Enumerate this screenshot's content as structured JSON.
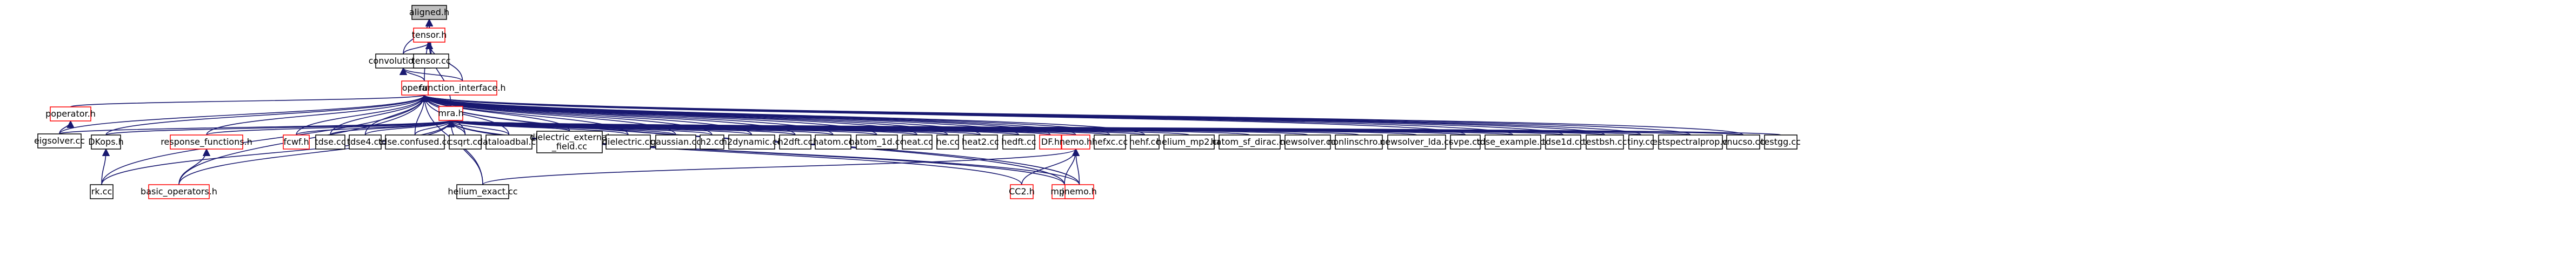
{
  "colors": {
    "edge": "#191970",
    "root_fill": "#bfbfbf",
    "root_stroke": "#000000",
    "normal_stroke": "#000000",
    "link_stroke": "#ff0000",
    "node_fill": "#ffffff"
  },
  "nodes": [
    {
      "id": "aligned_h",
      "label": "aligned.h",
      "kind": "root"
    },
    {
      "id": "tensor_h",
      "label": "tensor.h",
      "kind": "red"
    },
    {
      "id": "convolution1d_h",
      "label": "convolution1d.h",
      "kind": "black"
    },
    {
      "id": "tensor_cc",
      "label": "tensor.cc",
      "kind": "black"
    },
    {
      "id": "operator_h",
      "label": "operator.h",
      "kind": "red"
    },
    {
      "id": "function_interface_h",
      "label": "function_interface.h",
      "kind": "red"
    },
    {
      "id": "poperator_h",
      "label": "poperator.h",
      "kind": "red"
    },
    {
      "id": "mra_h",
      "label": "mra.h",
      "kind": "red"
    },
    {
      "id": "eigsolver_cc",
      "label": "eigsolver.cc",
      "kind": "black"
    },
    {
      "id": "dkops_h",
      "label": "DKops.h",
      "kind": "black"
    },
    {
      "id": "response_functions_h",
      "label": "response_functions.h",
      "kind": "red"
    },
    {
      "id": "fcwf_h",
      "label": "fcwf.h",
      "kind": "red"
    },
    {
      "id": "tdse_cc",
      "label": "tdse.cc",
      "kind": "black"
    },
    {
      "id": "tdse4_cc",
      "label": "tdse4.cc",
      "kind": "black"
    },
    {
      "id": "tdse_confused_cc",
      "label": "tdse.confused.cc",
      "kind": "black"
    },
    {
      "id": "csqrt_cc",
      "label": "csqrt.cc",
      "kind": "black"
    },
    {
      "id": "dataloadbal_cc",
      "label": "dataloadbal.cc",
      "kind": "black"
    },
    {
      "id": "dielectric_external_field_cc",
      "label": "dielectric_external\n_field.cc",
      "kind": "black"
    },
    {
      "id": "dielectric_cc",
      "label": "dielectric.cc",
      "kind": "black"
    },
    {
      "id": "gaussian_cc",
      "label": "gaussian.cc",
      "kind": "black"
    },
    {
      "id": "h2_cc",
      "label": "h2.cc",
      "kind": "black"
    },
    {
      "id": "h2dynamic_cc",
      "label": "h2dynamic.cc",
      "kind": "black"
    },
    {
      "id": "h2dft_cc",
      "label": "h2dft.cc",
      "kind": "black"
    },
    {
      "id": "hatom_cc",
      "label": "hatom.cc",
      "kind": "black"
    },
    {
      "id": "hatom_1d_cc",
      "label": "hatom_1d.cc",
      "kind": "black"
    },
    {
      "id": "heat_cc",
      "label": "heat.cc",
      "kind": "black"
    },
    {
      "id": "he_cc",
      "label": "he.cc",
      "kind": "black"
    },
    {
      "id": "heat2_cc",
      "label": "heat2.cc",
      "kind": "black"
    },
    {
      "id": "hedft_cc",
      "label": "hedft.cc",
      "kind": "black"
    },
    {
      "id": "df_h",
      "label": "DF.h",
      "kind": "red"
    },
    {
      "id": "nemo_h",
      "label": "nemo.h",
      "kind": "red"
    },
    {
      "id": "hefxc_cc",
      "label": "hefxc.cc",
      "kind": "black"
    },
    {
      "id": "hehf_cc",
      "label": "hehf.cc",
      "kind": "black"
    },
    {
      "id": "helium_mp2_cc",
      "label": "helium_mp2.cc",
      "kind": "black"
    },
    {
      "id": "hatom_sf_dirac_cc",
      "label": "hatom_sf_dirac.cc",
      "kind": "black"
    },
    {
      "id": "newsolver_cc",
      "label": "newsolver.cc",
      "kind": "black"
    },
    {
      "id": "nonlinschro_cc",
      "label": "nonlinschro.cc",
      "kind": "black"
    },
    {
      "id": "newsolver_lda_cc",
      "label": "newsolver_lda.cc",
      "kind": "black"
    },
    {
      "id": "svpe_cc",
      "label": "svpe.cc",
      "kind": "black"
    },
    {
      "id": "tdse_example_cc",
      "label": "tdse_example.cc",
      "kind": "black"
    },
    {
      "id": "tdse1d_cc",
      "label": "tdse1d.cc",
      "kind": "black"
    },
    {
      "id": "testbsh_cc",
      "label": "testbsh.cc",
      "kind": "black"
    },
    {
      "id": "testspectralprop_cc",
      "label": "testspectralprop.cc",
      "kind": "black"
    },
    {
      "id": "tiny_cc",
      "label": "tiny.cc",
      "kind": "black"
    },
    {
      "id": "vnucso_cc",
      "label": "vnucso.cc",
      "kind": "black"
    },
    {
      "id": "testgg_cc",
      "label": "testgg.cc",
      "kind": "black"
    },
    {
      "id": "rk_cc",
      "label": "rk.cc",
      "kind": "black"
    },
    {
      "id": "basic_operators_h",
      "label": "basic_operators.h",
      "kind": "red"
    },
    {
      "id": "helium_exact_cc",
      "label": "helium_exact.cc",
      "kind": "black"
    },
    {
      "id": "cc2_h",
      "label": "CC2.h",
      "kind": "red"
    },
    {
      "id": "mp2_h",
      "label": "mp2.h",
      "kind": "red"
    },
    {
      "id": "jnemo_h",
      "label": "jnemo.h",
      "kind": "red"
    }
  ],
  "edges": [
    [
      "tensor_h",
      "aligned_h"
    ],
    [
      "convolution1d_h",
      "aligned_h"
    ],
    [
      "tensor_cc",
      "aligned_h"
    ],
    [
      "operator_h",
      "aligned_h"
    ],
    [
      "tensor_cc",
      "tensor_h"
    ],
    [
      "convolution1d_h",
      "tensor_h"
    ],
    [
      "function_interface_h",
      "tensor_h"
    ],
    [
      "mra_h",
      "tensor_h"
    ],
    [
      "operator_h",
      "convolution1d_h"
    ],
    [
      "function_interface_h",
      "convolution1d_h"
    ],
    [
      "poperator_h",
      "operator_h"
    ],
    [
      "mra_h",
      "operator_h"
    ],
    [
      "eigsolver_cc",
      "operator_h"
    ],
    [
      "dkops_h",
      "operator_h"
    ],
    [
      "response_functions_h",
      "operator_h"
    ],
    [
      "fcwf_h",
      "operator_h"
    ],
    [
      "tdse_cc",
      "operator_h"
    ],
    [
      "tdse4_cc",
      "operator_h"
    ],
    [
      "tdse_confused_cc",
      "operator_h"
    ],
    [
      "csqrt_cc",
      "operator_h"
    ],
    [
      "dataloadbal_cc",
      "operator_h"
    ],
    [
      "dielectric_external_field_cc",
      "operator_h"
    ],
    [
      "dielectric_cc",
      "operator_h"
    ],
    [
      "gaussian_cc",
      "operator_h"
    ],
    [
      "h2_cc",
      "operator_h"
    ],
    [
      "h2dynamic_cc",
      "operator_h"
    ],
    [
      "h2dft_cc",
      "operator_h"
    ],
    [
      "hatom_cc",
      "operator_h"
    ],
    [
      "hatom_1d_cc",
      "operator_h"
    ],
    [
      "heat_cc",
      "operator_h"
    ],
    [
      "he_cc",
      "operator_h"
    ],
    [
      "heat2_cc",
      "operator_h"
    ],
    [
      "hedft_cc",
      "operator_h"
    ],
    [
      "df_h",
      "operator_h"
    ],
    [
      "nemo_h",
      "operator_h"
    ],
    [
      "hefxc_cc",
      "operator_h"
    ],
    [
      "hehf_cc",
      "operator_h"
    ],
    [
      "svpe_cc",
      "operator_h"
    ],
    [
      "tdse_example_cc",
      "operator_h"
    ],
    [
      "tdse1d_cc",
      "operator_h"
    ],
    [
      "testbsh_cc",
      "operator_h"
    ],
    [
      "testspectralprop_cc",
      "operator_h"
    ],
    [
      "tiny_cc",
      "operator_h"
    ],
    [
      "vnucso_cc",
      "operator_h"
    ],
    [
      "rk_cc",
      "operator_h"
    ],
    [
      "basic_operators_h",
      "operator_h"
    ],
    [
      "helium_exact_cc",
      "operator_h"
    ],
    [
      "mp2_h",
      "operator_h"
    ],
    [
      "jnemo_h",
      "operator_h"
    ],
    [
      "eigsolver_cc",
      "poperator_h"
    ],
    [
      "eigsolver_cc",
      "mra_h"
    ],
    [
      "dkops_h",
      "mra_h"
    ],
    [
      "response_functions_h",
      "mra_h"
    ],
    [
      "fcwf_h",
      "mra_h"
    ],
    [
      "tdse_cc",
      "mra_h"
    ],
    [
      "tdse4_cc",
      "mra_h"
    ],
    [
      "tdse_confused_cc",
      "mra_h"
    ],
    [
      "csqrt_cc",
      "mra_h"
    ],
    [
      "dataloadbal_cc",
      "mra_h"
    ],
    [
      "dielectric_external_field_cc",
      "mra_h"
    ],
    [
      "dielectric_cc",
      "mra_h"
    ],
    [
      "gaussian_cc",
      "mra_h"
    ],
    [
      "h2_cc",
      "mra_h"
    ],
    [
      "h2dynamic_cc",
      "mra_h"
    ],
    [
      "h2dft_cc",
      "mra_h"
    ],
    [
      "hatom_cc",
      "mra_h"
    ],
    [
      "hatom_1d_cc",
      "mra_h"
    ],
    [
      "heat_cc",
      "mra_h"
    ],
    [
      "he_cc",
      "mra_h"
    ],
    [
      "heat2_cc",
      "mra_h"
    ],
    [
      "hedft_cc",
      "mra_h"
    ],
    [
      "df_h",
      "mra_h"
    ],
    [
      "nemo_h",
      "mra_h"
    ],
    [
      "hefxc_cc",
      "mra_h"
    ],
    [
      "hehf_cc",
      "mra_h"
    ],
    [
      "helium_mp2_cc",
      "mra_h"
    ],
    [
      "hatom_sf_dirac_cc",
      "mra_h"
    ],
    [
      "newsolver_cc",
      "mra_h"
    ],
    [
      "nonlinschro_cc",
      "mra_h"
    ],
    [
      "newsolver_lda_cc",
      "mra_h"
    ],
    [
      "svpe_cc",
      "mra_h"
    ],
    [
      "tdse_example_cc",
      "mra_h"
    ],
    [
      "tdse1d_cc",
      "mra_h"
    ],
    [
      "testbsh_cc",
      "mra_h"
    ],
    [
      "tiny_cc",
      "mra_h"
    ],
    [
      "testspectralprop_cc",
      "mra_h"
    ],
    [
      "vnucso_cc",
      "mra_h"
    ],
    [
      "testgg_cc",
      "mra_h"
    ],
    [
      "rk_cc",
      "mra_h"
    ],
    [
      "basic_operators_h",
      "mra_h"
    ],
    [
      "helium_exact_cc",
      "mra_h"
    ],
    [
      "cc2_h",
      "mra_h"
    ],
    [
      "mp2_h",
      "mra_h"
    ],
    [
      "jnemo_h",
      "mra_h"
    ],
    [
      "rk_cc",
      "dkops_h"
    ],
    [
      "basic_operators_h",
      "response_functions_h"
    ],
    [
      "helium_exact_cc",
      "nemo_h"
    ],
    [
      "cc2_h",
      "nemo_h"
    ],
    [
      "mp2_h",
      "nemo_h"
    ],
    [
      "jnemo_h",
      "nemo_h"
    ]
  ]
}
